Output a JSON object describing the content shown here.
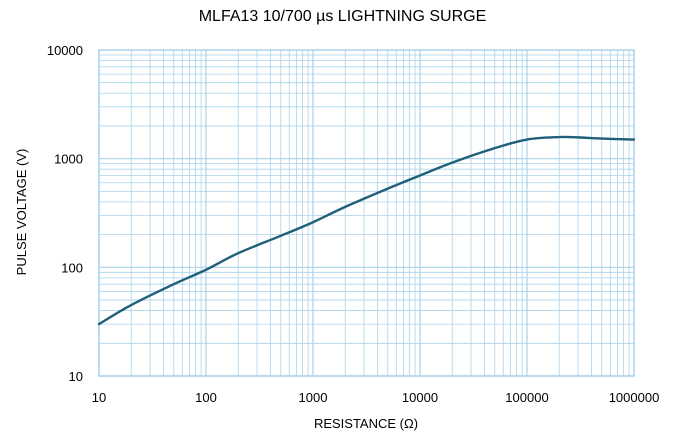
{
  "chart_data": {
    "type": "line",
    "title": "MLFA13 10/700 µs LIGHTNING SURGE",
    "xlabel": "RESISTANCE (Ω)",
    "ylabel": "PULSE VOLTAGE (V)",
    "x_scale": "log",
    "y_scale": "log",
    "xlim": [
      10,
      1000000
    ],
    "ylim": [
      10,
      10000
    ],
    "x_ticks": [
      "10",
      "100",
      "1000",
      "10000",
      "100000",
      "1000000"
    ],
    "y_ticks": [
      "10",
      "100",
      "1000",
      "10000"
    ],
    "grid": true,
    "legend": "none",
    "colors": {
      "line": "#1f5f7a",
      "grid": "#a9d3ea",
      "frame": "#a9d3ea"
    },
    "series": [
      {
        "x": [
          10,
          20,
          50,
          100,
          200,
          500,
          1000,
          2000,
          5000,
          10000,
          20000,
          50000,
          100000,
          200000,
          300000,
          500000,
          1000000
        ],
        "values": [
          30,
          45,
          70,
          95,
          135,
          195,
          260,
          360,
          530,
          700,
          920,
          1250,
          1500,
          1580,
          1570,
          1530,
          1500
        ]
      }
    ]
  }
}
